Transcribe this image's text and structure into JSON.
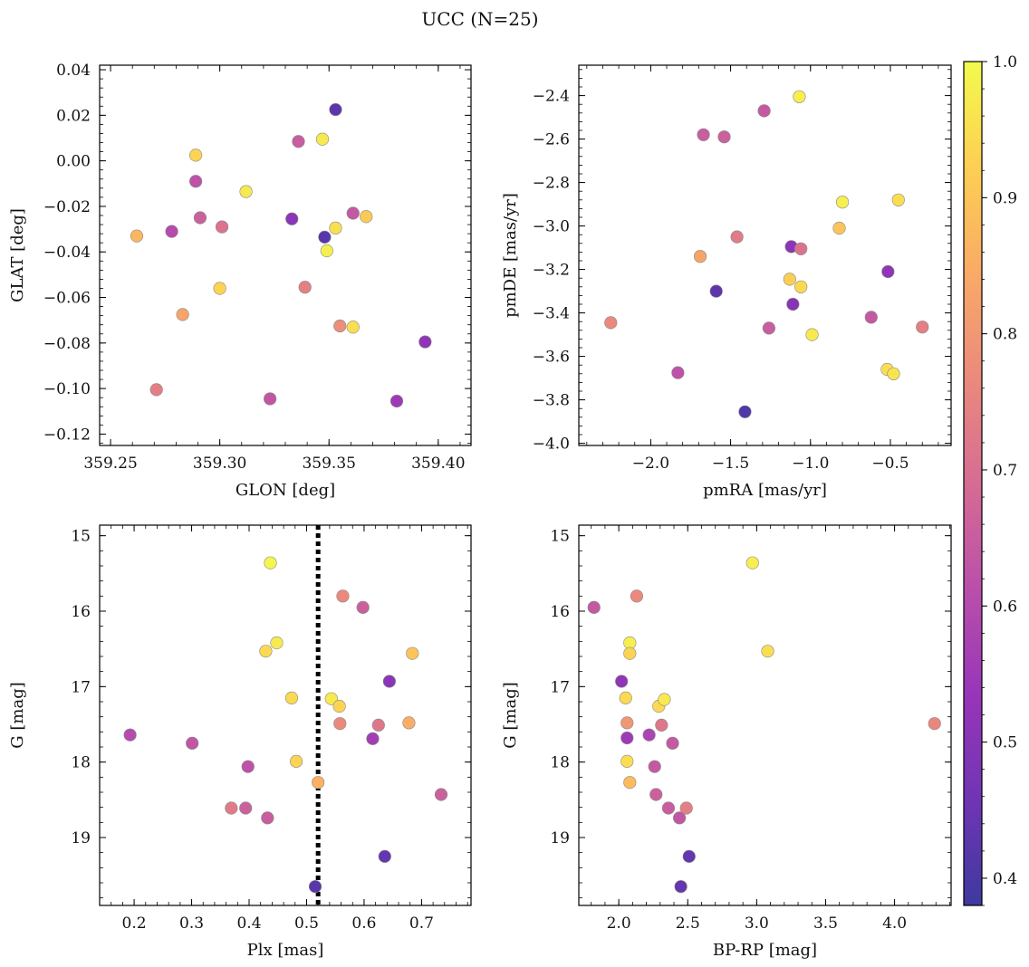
{
  "figure_title": "UCC (N=25)",
  "colorbar": {
    "colormap": "plasma",
    "range": [
      0.38,
      1.0
    ],
    "ticks": [
      "0.4",
      "0.5",
      "0.6",
      "0.7",
      "0.8",
      "0.9",
      "1.0"
    ]
  },
  "chart_data": [
    {
      "type": "scatter",
      "xlabel": "GLON [deg]",
      "ylabel": "GLAT [deg]",
      "xlim": [
        359.245,
        359.415
      ],
      "ylim": [
        -0.125,
        0.042
      ],
      "xticks": [
        "359.25",
        "359.30",
        "359.35",
        "359.40"
      ],
      "yticks": [
        "0.04",
        "0.02",
        "0.00",
        "−0.02",
        "−0.04",
        "−0.06",
        "−0.08",
        "−0.10",
        "−0.12"
      ],
      "points": [
        {
          "x": 359.262,
          "y": -0.033,
          "c": 0.87
        },
        {
          "x": 359.271,
          "y": -0.1005,
          "c": 0.74
        },
        {
          "x": 359.278,
          "y": -0.031,
          "c": 0.6
        },
        {
          "x": 359.283,
          "y": -0.0675,
          "c": 0.83
        },
        {
          "x": 359.289,
          "y": 0.0025,
          "c": 0.93
        },
        {
          "x": 359.289,
          "y": -0.009,
          "c": 0.62
        },
        {
          "x": 359.291,
          "y": -0.025,
          "c": 0.66
        },
        {
          "x": 359.3,
          "y": -0.056,
          "c": 0.93
        },
        {
          "x": 359.301,
          "y": -0.029,
          "c": 0.71
        },
        {
          "x": 359.312,
          "y": -0.0135,
          "c": 0.97
        },
        {
          "x": 359.323,
          "y": -0.1045,
          "c": 0.63
        },
        {
          "x": 359.333,
          "y": -0.0255,
          "c": 0.51
        },
        {
          "x": 359.336,
          "y": 0.0085,
          "c": 0.65
        },
        {
          "x": 359.339,
          "y": -0.0555,
          "c": 0.74
        },
        {
          "x": 359.347,
          "y": 0.0095,
          "c": 0.97
        },
        {
          "x": 359.348,
          "y": -0.0335,
          "c": 0.42
        },
        {
          "x": 359.349,
          "y": -0.0395,
          "c": 0.98
        },
        {
          "x": 359.353,
          "y": 0.0225,
          "c": 0.43
        },
        {
          "x": 359.353,
          "y": -0.0295,
          "c": 0.95
        },
        {
          "x": 359.355,
          "y": -0.0725,
          "c": 0.78
        },
        {
          "x": 359.361,
          "y": -0.023,
          "c": 0.64
        },
        {
          "x": 359.361,
          "y": -0.073,
          "c": 0.95
        },
        {
          "x": 359.367,
          "y": -0.0245,
          "c": 0.91
        },
        {
          "x": 359.381,
          "y": -0.1055,
          "c": 0.55
        },
        {
          "x": 359.394,
          "y": -0.0795,
          "c": 0.52
        }
      ]
    },
    {
      "type": "scatter",
      "xlabel": "pmRA [mas/yr]",
      "ylabel": "pmDE [mas/yr]",
      "xlim": [
        -2.45,
        -0.12
      ],
      "ylim": [
        -4.01,
        -2.26
      ],
      "xticks": [
        "−2.0",
        "−1.5",
        "−1.0",
        "−0.5"
      ],
      "yticks": [
        "−2.4",
        "−2.6",
        "−2.8",
        "−3.0",
        "−3.2",
        "−3.4",
        "−3.6",
        "−3.8",
        "−4.0"
      ],
      "points": [
        {
          "x": -2.25,
          "y": -3.445,
          "c": 0.77
        },
        {
          "x": -1.83,
          "y": -3.675,
          "c": 0.62
        },
        {
          "x": -1.69,
          "y": -3.14,
          "c": 0.83
        },
        {
          "x": -1.67,
          "y": -2.58,
          "c": 0.65
        },
        {
          "x": -1.59,
          "y": -3.3,
          "c": 0.43
        },
        {
          "x": -1.54,
          "y": -2.59,
          "c": 0.66
        },
        {
          "x": -1.46,
          "y": -3.05,
          "c": 0.73
        },
        {
          "x": -1.41,
          "y": -3.855,
          "c": 0.41
        },
        {
          "x": -1.29,
          "y": -2.47,
          "c": 0.64
        },
        {
          "x": -1.26,
          "y": -3.47,
          "c": 0.65
        },
        {
          "x": -1.13,
          "y": -3.245,
          "c": 0.92
        },
        {
          "x": -1.12,
          "y": -3.095,
          "c": 0.51
        },
        {
          "x": -1.11,
          "y": -3.36,
          "c": 0.5
        },
        {
          "x": -1.07,
          "y": -2.405,
          "c": 0.98
        },
        {
          "x": -1.06,
          "y": -3.105,
          "c": 0.71
        },
        {
          "x": -1.06,
          "y": -3.28,
          "c": 0.94
        },
        {
          "x": -0.99,
          "y": -3.5,
          "c": 0.97
        },
        {
          "x": -0.82,
          "y": -3.01,
          "c": 0.9
        },
        {
          "x": -0.8,
          "y": -2.89,
          "c": 0.98
        },
        {
          "x": -0.62,
          "y": -3.42,
          "c": 0.64
        },
        {
          "x": -0.52,
          "y": -3.66,
          "c": 0.95
        },
        {
          "x": -0.515,
          "y": -3.21,
          "c": 0.52
        },
        {
          "x": -0.48,
          "y": -3.68,
          "c": 0.96
        },
        {
          "x": -0.45,
          "y": -2.88,
          "c": 0.95
        },
        {
          "x": -0.3,
          "y": -3.465,
          "c": 0.74
        }
      ]
    },
    {
      "type": "scatter",
      "xlabel": "Plx [mas]",
      "ylabel": "G [mag]",
      "xlim": [
        0.14,
        0.786
      ],
      "ylim": [
        19.9,
        14.86
      ],
      "y_inverted": true,
      "xticks": [
        "0.2",
        "0.3",
        "0.4",
        "0.5",
        "0.6",
        "0.7"
      ],
      "yticks": [
        "15",
        "16",
        "17",
        "18",
        "19"
      ],
      "vline": {
        "x": 0.52,
        "style": "dotted"
      },
      "points": [
        {
          "x": 0.193,
          "y": 17.64,
          "c": 0.6
        },
        {
          "x": 0.301,
          "y": 17.75,
          "c": 0.63
        },
        {
          "x": 0.369,
          "y": 18.61,
          "c": 0.73
        },
        {
          "x": 0.394,
          "y": 18.61,
          "c": 0.66
        },
        {
          "x": 0.398,
          "y": 18.06,
          "c": 0.62
        },
        {
          "x": 0.429,
          "y": 16.53,
          "c": 0.94
        },
        {
          "x": 0.432,
          "y": 18.74,
          "c": 0.65
        },
        {
          "x": 0.437,
          "y": 15.36,
          "c": 0.99
        },
        {
          "x": 0.448,
          "y": 16.42,
          "c": 0.97
        },
        {
          "x": 0.474,
          "y": 17.15,
          "c": 0.94
        },
        {
          "x": 0.482,
          "y": 17.99,
          "c": 0.93
        },
        {
          "x": 0.515,
          "y": 19.65,
          "c": 0.42
        },
        {
          "x": 0.52,
          "y": 18.27,
          "c": 0.86
        },
        {
          "x": 0.543,
          "y": 17.16,
          "c": 0.97
        },
        {
          "x": 0.557,
          "y": 17.26,
          "c": 0.93
        },
        {
          "x": 0.558,
          "y": 17.49,
          "c": 0.77
        },
        {
          "x": 0.563,
          "y": 15.8,
          "c": 0.77
        },
        {
          "x": 0.598,
          "y": 15.95,
          "c": 0.66
        },
        {
          "x": 0.615,
          "y": 17.69,
          "c": 0.56
        },
        {
          "x": 0.625,
          "y": 17.51,
          "c": 0.72
        },
        {
          "x": 0.636,
          "y": 19.25,
          "c": 0.44
        },
        {
          "x": 0.644,
          "y": 16.93,
          "c": 0.51
        },
        {
          "x": 0.678,
          "y": 17.48,
          "c": 0.85
        },
        {
          "x": 0.684,
          "y": 16.56,
          "c": 0.9
        },
        {
          "x": 0.734,
          "y": 18.43,
          "c": 0.66
        }
      ]
    },
    {
      "type": "scatter",
      "xlabel": "BP-RP [mag]",
      "ylabel": "G [mag]",
      "xlim": [
        1.71,
        4.41
      ],
      "ylim": [
        19.9,
        14.86
      ],
      "y_inverted": true,
      "xticks": [
        "2.0",
        "2.5",
        "3.0",
        "3.5",
        "4.0"
      ],
      "yticks": [
        "15",
        "16",
        "17",
        "18",
        "19"
      ],
      "points": [
        {
          "x": 1.82,
          "y": 15.95,
          "c": 0.64
        },
        {
          "x": 2.02,
          "y": 16.93,
          "c": 0.52
        },
        {
          "x": 2.05,
          "y": 17.15,
          "c": 0.94
        },
        {
          "x": 2.06,
          "y": 17.48,
          "c": 0.8
        },
        {
          "x": 2.06,
          "y": 17.68,
          "c": 0.55
        },
        {
          "x": 2.06,
          "y": 17.99,
          "c": 0.95
        },
        {
          "x": 2.08,
          "y": 16.42,
          "c": 0.98
        },
        {
          "x": 2.08,
          "y": 16.56,
          "c": 0.93
        },
        {
          "x": 2.08,
          "y": 18.27,
          "c": 0.88
        },
        {
          "x": 2.13,
          "y": 15.8,
          "c": 0.77
        },
        {
          "x": 2.22,
          "y": 17.64,
          "c": 0.58
        },
        {
          "x": 2.26,
          "y": 18.06,
          "c": 0.64
        },
        {
          "x": 2.27,
          "y": 18.43,
          "c": 0.66
        },
        {
          "x": 2.29,
          "y": 17.26,
          "c": 0.94
        },
        {
          "x": 2.31,
          "y": 17.51,
          "c": 0.72
        },
        {
          "x": 2.33,
          "y": 17.17,
          "c": 0.97
        },
        {
          "x": 2.36,
          "y": 18.61,
          "c": 0.65
        },
        {
          "x": 2.39,
          "y": 17.75,
          "c": 0.64
        },
        {
          "x": 2.44,
          "y": 18.74,
          "c": 0.63
        },
        {
          "x": 2.45,
          "y": 19.65,
          "c": 0.44
        },
        {
          "x": 2.49,
          "y": 18.61,
          "c": 0.74
        },
        {
          "x": 2.51,
          "y": 19.25,
          "c": 0.44
        },
        {
          "x": 2.97,
          "y": 15.36,
          "c": 0.98
        },
        {
          "x": 3.08,
          "y": 16.53,
          "c": 0.95
        },
        {
          "x": 4.29,
          "y": 17.49,
          "c": 0.76
        }
      ]
    }
  ]
}
